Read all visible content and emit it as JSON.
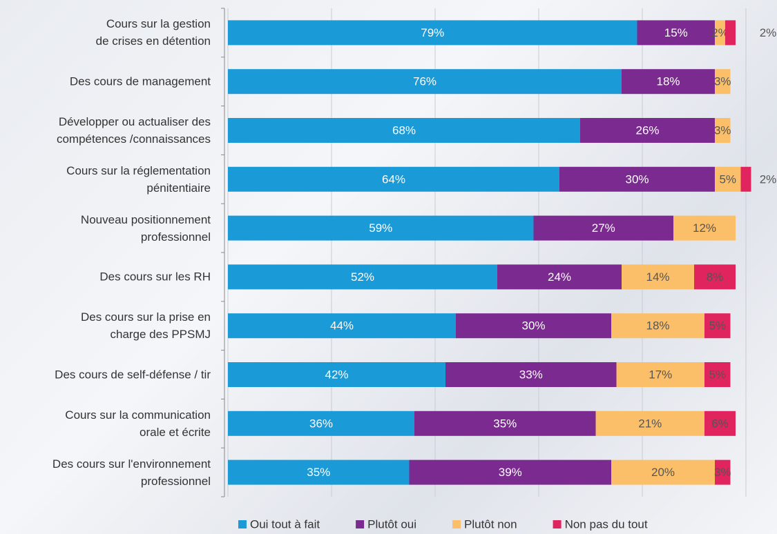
{
  "chart_data": {
    "type": "stacked_bar_horizontal",
    "categories": [
      "Cours sur la gestion\nde crises en détention",
      "Des cours de management",
      "Développer ou actualiser des\ncompétences /connaissances",
      "Cours sur la réglementation\npénitentiaire",
      "Nouveau positionnement\nprofessionnel",
      "Des cours sur les RH",
      "Des cours sur la prise en\ncharge des PPSMJ",
      "Des cours de self-défense / tir",
      "Cours sur la communication\norale et écrite",
      "Des cours sur l'environnement\nprofessionnel"
    ],
    "series": [
      {
        "name": "Oui tout à fait",
        "color": "#1a9ad6",
        "values": [
          79,
          76,
          68,
          64,
          59,
          52,
          44,
          42,
          36,
          35
        ],
        "value_labels": [
          "79%",
          "76%",
          "68%",
          "64%",
          "59%",
          "52%",
          "44%",
          "42%",
          "36%",
          "35%"
        ]
      },
      {
        "name": "Plutôt oui",
        "color": "#7b2a90",
        "values": [
          15,
          18,
          26,
          30,
          27,
          24,
          30,
          33,
          35,
          39
        ],
        "value_labels": [
          "15%",
          "18%",
          "26%",
          "30%",
          "27%",
          "24%",
          "30%",
          "33%",
          "35%",
          "39%"
        ]
      },
      {
        "name": "Plutôt non",
        "color": "#fbbf6a",
        "values": [
          2,
          3,
          3,
          5,
          12,
          14,
          18,
          17,
          21,
          20
        ],
        "value_labels": [
          "2%",
          "3%",
          "3%",
          "5%",
          "12%",
          "14%",
          "18%",
          "17%",
          "21%",
          "20%"
        ]
      },
      {
        "name": "Non pas du tout",
        "color": "#e0245e",
        "values": [
          2,
          null,
          null,
          2,
          null,
          8,
          5,
          5,
          6,
          3
        ],
        "value_labels": [
          "2%",
          null,
          null,
          "2%",
          null,
          "8%",
          "5%",
          "5%",
          "6%",
          "3%"
        ]
      }
    ],
    "xlim": [
      0,
      100
    ],
    "xticks": [
      0,
      20,
      40,
      60,
      80,
      100
    ],
    "grid": true
  }
}
